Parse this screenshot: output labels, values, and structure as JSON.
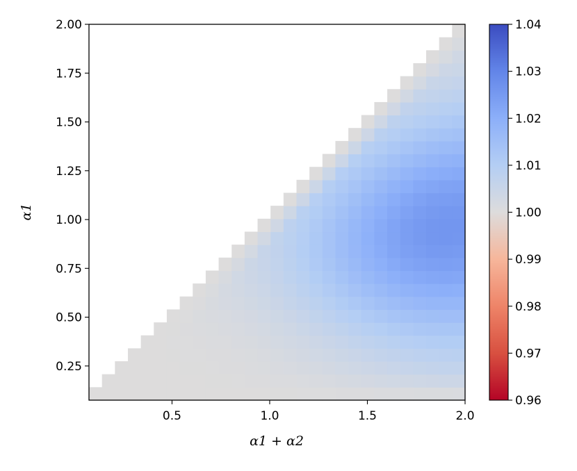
{
  "chart_data": {
    "type": "heatmap",
    "xlabel": "α1 + α2",
    "ylabel": "α1",
    "xlim": [
      0.075,
      2.0
    ],
    "ylim": [
      0.075,
      2.0
    ],
    "x_ticks": [
      0.5,
      1.0,
      1.5,
      2.0
    ],
    "x_tick_labels": [
      "0.5",
      "1.0",
      "1.5",
      "2.0"
    ],
    "y_ticks": [
      0.25,
      0.5,
      0.75,
      1.0,
      1.25,
      1.5,
      1.75,
      2.0
    ],
    "y_tick_labels": [
      "0.25",
      "0.50",
      "0.75",
      "1.00",
      "1.25",
      "1.50",
      "1.75",
      "2.00"
    ],
    "grid_step": 0.066,
    "grid_size": 29,
    "note_values": "cell value = ratio shown by colorbar; cells only where α1 ≤ α1+α2 (lower-right triangle); values estimated from colors",
    "colorbar": {
      "colormap": "coolwarm",
      "vmin": 0.96,
      "vmax": 1.04,
      "ticks": [
        0.96,
        0.97,
        0.98,
        0.99,
        1.0,
        1.01,
        1.02,
        1.03,
        1.04
      ],
      "tick_labels": [
        "0.96",
        "0.97",
        "0.98",
        "0.99",
        "1.00",
        "1.01",
        "1.02",
        "1.03",
        "1.04"
      ]
    },
    "value_model": {
      "description": "approximate values: 1.0 on diagonal and bottom row; peak ≈1.026 near α1+α2≈1.9, α1≈0.85",
      "peak_value": 1.026,
      "peak_at": {
        "x": 1.9,
        "y": 0.85
      },
      "baseline": 1.0
    }
  }
}
